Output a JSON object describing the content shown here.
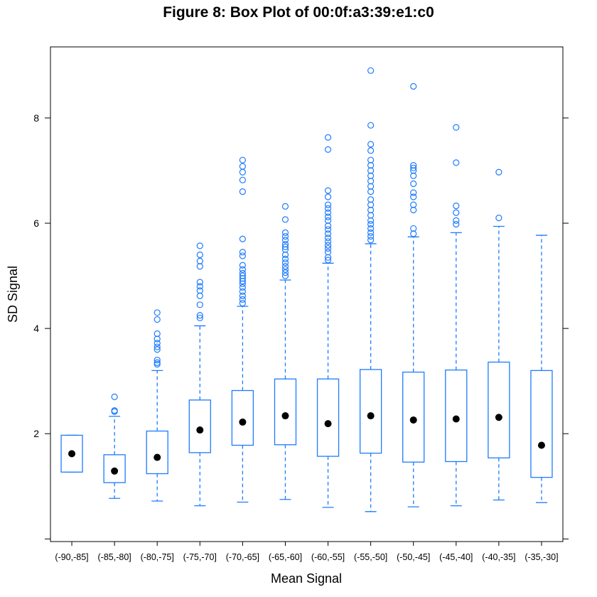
{
  "chart_data": {
    "type": "box",
    "title": "Figure 8: Box Plot of 00:0f:a3:39:e1:c0",
    "xlabel": "Mean Signal",
    "ylabel": "SD Signal",
    "ylim": [
      -0.05,
      9.35
    ],
    "yticks": [
      2,
      4,
      6,
      8
    ],
    "grid": false,
    "box_color": "#1E7BFF",
    "median_color": "#000000",
    "categories": [
      "(-90,-85]",
      "(-85,-80]",
      "(-80,-75]",
      "(-75,-70]",
      "(-70,-65]",
      "(-65,-60]",
      "(-60,-55]",
      "(-55,-50]",
      "(-50,-45]",
      "(-45,-40]",
      "(-40,-35]",
      "(-35,-30]"
    ],
    "boxes": [
      {
        "category": "(-90,-85]",
        "whisker_low": 1.27,
        "q1": 1.27,
        "median": 1.62,
        "q3": 1.97,
        "whisker_high": 1.97,
        "outliers": []
      },
      {
        "category": "(-85,-80]",
        "whisker_low": 0.77,
        "q1": 1.07,
        "median": 1.29,
        "q3": 1.6,
        "whisker_high": 2.33,
        "outliers": [
          2.42,
          2.44,
          2.7
        ]
      },
      {
        "category": "(-80,-75]",
        "whisker_low": 0.72,
        "q1": 1.24,
        "median": 1.55,
        "q3": 2.05,
        "whisker_high": 3.2,
        "outliers": [
          3.32,
          3.35,
          3.4,
          3.6,
          3.65,
          3.72,
          3.8,
          3.9,
          4.17,
          4.3
        ]
      },
      {
        "category": "(-75,-70]",
        "whisker_low": 0.63,
        "q1": 1.64,
        "median": 2.07,
        "q3": 2.64,
        "whisker_high": 4.05,
        "outliers": [
          4.2,
          4.25,
          4.45,
          4.62,
          4.72,
          4.8,
          4.88,
          5.18,
          5.28,
          5.4,
          5.57
        ]
      },
      {
        "category": "(-70,-65]",
        "whisker_low": 0.7,
        "q1": 1.78,
        "median": 2.22,
        "q3": 2.82,
        "whisker_high": 4.42,
        "outliers": [
          4.48,
          4.55,
          4.62,
          4.7,
          4.78,
          4.85,
          4.9,
          4.95,
          5.0,
          5.05,
          5.12,
          5.2,
          5.38,
          5.45,
          5.7,
          6.6,
          6.82,
          6.97,
          7.08,
          7.2
        ]
      },
      {
        "category": "(-65,-60]",
        "whisker_low": 0.75,
        "q1": 1.79,
        "median": 2.34,
        "q3": 3.04,
        "whisker_high": 4.92,
        "outliers": [
          5.0,
          5.06,
          5.12,
          5.18,
          5.25,
          5.32,
          5.4,
          5.5,
          5.55,
          5.6,
          5.68,
          5.75,
          5.82,
          6.07,
          6.32
        ]
      },
      {
        "category": "(-60,-55]",
        "whisker_low": 0.6,
        "q1": 1.57,
        "median": 2.19,
        "q3": 3.04,
        "whisker_high": 5.24,
        "outliers": [
          5.3,
          5.35,
          5.45,
          5.52,
          5.58,
          5.65,
          5.72,
          5.8,
          5.88,
          5.95,
          6.05,
          6.12,
          6.2,
          6.28,
          6.35,
          6.5,
          6.62,
          7.4,
          7.63
        ]
      },
      {
        "category": "(-55,-50]",
        "whisker_low": 0.52,
        "q1": 1.63,
        "median": 2.34,
        "q3": 3.22,
        "whisker_high": 5.61,
        "outliers": [
          5.68,
          5.75,
          5.82,
          5.9,
          5.98,
          6.05,
          6.15,
          6.25,
          6.35,
          6.45,
          6.6,
          6.7,
          6.8,
          6.9,
          7.0,
          7.1,
          7.2,
          7.38,
          7.5,
          7.86,
          8.9
        ]
      },
      {
        "category": "(-50,-45]",
        "whisker_low": 0.61,
        "q1": 1.46,
        "median": 2.26,
        "q3": 3.17,
        "whisker_high": 5.74,
        "outliers": [
          5.8,
          5.9,
          6.25,
          6.35,
          6.5,
          6.58,
          6.75,
          6.9,
          7.0,
          7.05,
          7.1,
          8.6
        ]
      },
      {
        "category": "(-45,-40]",
        "whisker_low": 0.63,
        "q1": 1.47,
        "median": 2.28,
        "q3": 3.21,
        "whisker_high": 5.82,
        "outliers": [
          5.98,
          6.05,
          6.2,
          6.33,
          7.15,
          7.82
        ]
      },
      {
        "category": "(-40,-35]",
        "whisker_low": 0.74,
        "q1": 1.54,
        "median": 2.31,
        "q3": 3.36,
        "whisker_high": 5.94,
        "outliers": [
          6.1,
          6.97
        ]
      },
      {
        "category": "(-35,-30]",
        "whisker_low": 0.69,
        "q1": 1.17,
        "median": 1.78,
        "q3": 3.2,
        "whisker_high": 5.77,
        "outliers": []
      }
    ]
  }
}
